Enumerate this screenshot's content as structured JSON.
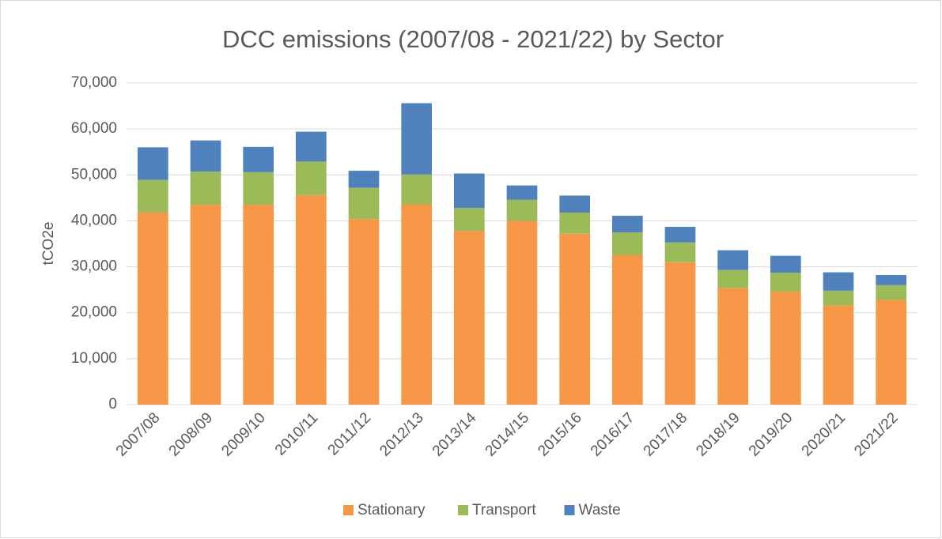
{
  "chart_data": {
    "type": "stacked_bar",
    "title": "DCC emissions (2007/08 - 2021/22) by Sector",
    "y_label": "tCO2e",
    "categories": [
      "2007/08",
      "2008/09",
      "2009/10",
      "2010/11",
      "2011/12",
      "2012/13",
      "2013/14",
      "2014/15",
      "2015/16",
      "2016/17",
      "2017/18",
      "2018/19",
      "2019/20",
      "2020/21",
      "2021/22"
    ],
    "series": [
      {
        "name": "Stationary",
        "color": "#f79646",
        "values": [
          41800,
          43500,
          43500,
          45600,
          40400,
          43600,
          37800,
          40000,
          37200,
          32600,
          31000,
          25400,
          24600,
          21600,
          22800
        ]
      },
      {
        "name": "Transport",
        "color": "#9bbb59",
        "values": [
          7100,
          7200,
          7100,
          7300,
          6800,
          6500,
          5000,
          4600,
          4600,
          4900,
          4300,
          3900,
          4100,
          3200,
          3200
        ]
      },
      {
        "name": "Waste",
        "color": "#4f81bd",
        "values": [
          7100,
          6800,
          5500,
          6500,
          3700,
          15500,
          7500,
          3100,
          3700,
          3600,
          3400,
          4300,
          3700,
          4000,
          2200
        ]
      }
    ],
    "ylim": [
      0,
      70000
    ],
    "yticks": [
      0,
      {
        "value": 10000,
        "label": "10,000"
      },
      {
        "value": 20000,
        "label": "20,000"
      },
      {
        "value": 30000,
        "label": "30,000"
      },
      {
        "value": 40000,
        "label": "40,000"
      },
      {
        "value": 50000,
        "label": "50,000"
      },
      {
        "value": 60000,
        "label": "60,000"
      },
      {
        "value": 70000,
        "label": "70,000"
      }
    ],
    "grid": true,
    "legend": "bottom"
  }
}
